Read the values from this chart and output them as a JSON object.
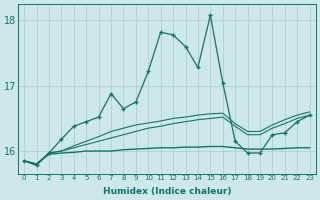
{
  "xlabel": "Humidex (Indice chaleur)",
  "bg_color": "#cce8e8",
  "grid_color": "#aacccc",
  "line_color": "#1a7068",
  "xlim": [
    -0.5,
    23.5
  ],
  "ylim": [
    15.65,
    18.25
  ],
  "yticks": [
    16,
    17,
    18
  ],
  "xticks": [
    0,
    1,
    2,
    3,
    4,
    5,
    6,
    7,
    8,
    9,
    10,
    11,
    12,
    13,
    14,
    15,
    16,
    17,
    18,
    19,
    20,
    21,
    22,
    23
  ],
  "flat_line_x": [
    0,
    1,
    2,
    3,
    4,
    5,
    6,
    7,
    8,
    9,
    10,
    11,
    12,
    13,
    14,
    15,
    16,
    17,
    18,
    19,
    20,
    21,
    22,
    23
  ],
  "flat_line_y": [
    15.85,
    15.8,
    15.95,
    15.97,
    15.98,
    16.0,
    16.0,
    16.0,
    16.02,
    16.03,
    16.04,
    16.05,
    16.05,
    16.06,
    16.06,
    16.07,
    16.07,
    16.05,
    16.03,
    16.03,
    16.03,
    16.04,
    16.05,
    16.05
  ],
  "rise1_x": [
    0,
    1,
    2,
    3,
    4,
    5,
    6,
    7,
    8,
    9,
    10,
    11,
    12,
    13,
    14,
    15,
    16,
    17,
    18,
    19,
    20,
    21,
    22,
    23
  ],
  "rise1_y": [
    15.85,
    15.8,
    15.97,
    16.0,
    16.05,
    16.1,
    16.15,
    16.2,
    16.25,
    16.3,
    16.35,
    16.38,
    16.42,
    16.45,
    16.48,
    16.5,
    16.52,
    16.38,
    16.25,
    16.25,
    16.35,
    16.42,
    16.5,
    16.55
  ],
  "rise2_x": [
    0,
    1,
    2,
    3,
    4,
    5,
    6,
    7,
    8,
    9,
    10,
    11,
    12,
    13,
    14,
    15,
    16,
    17,
    18,
    19,
    20,
    21,
    22,
    23
  ],
  "rise2_y": [
    15.85,
    15.8,
    15.97,
    16.0,
    16.08,
    16.15,
    16.22,
    16.3,
    16.35,
    16.4,
    16.43,
    16.46,
    16.5,
    16.52,
    16.55,
    16.57,
    16.58,
    16.42,
    16.3,
    16.3,
    16.4,
    16.48,
    16.55,
    16.6
  ],
  "spiky_x": [
    0,
    1,
    2,
    3,
    4,
    5,
    6,
    7,
    8,
    9,
    10,
    11,
    12,
    13,
    14,
    15,
    16,
    17,
    18,
    19,
    20,
    21,
    22,
    23
  ],
  "spiky_y": [
    15.85,
    15.78,
    15.97,
    16.18,
    16.38,
    16.45,
    16.52,
    16.88,
    16.65,
    16.75,
    17.22,
    17.82,
    17.78,
    17.6,
    17.28,
    18.08,
    17.05,
    16.15,
    15.97,
    15.97,
    16.25,
    16.28,
    16.45,
    16.55
  ]
}
